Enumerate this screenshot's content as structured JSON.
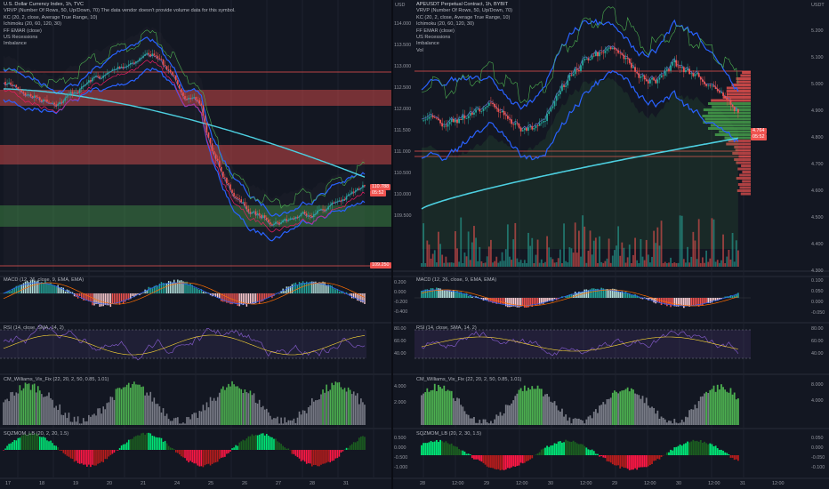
{
  "left": {
    "title": "U.S. Dollar Currency Index, 1h, TVC",
    "legend": [
      "VRVP (Number Of Rows, 50, Up/Down, 70)  The data vendor doesn't provide volume data for this symbol.",
      "KC (20, 2, close, Average True Range, 10)",
      "Ichimoku (20, 60, 120, 30)",
      "FF EMAR (close)",
      "US Recessions",
      "Imbalance"
    ],
    "indicators": {
      "macd": "MACD (12, 26, close, 9, EMA, EMA)",
      "rsi": "RSI (14, close, SMA, 14, 2)",
      "vix": "CM_Williams_Vix_Fix (22, 20, 2, 50, 0.85, 1.01)",
      "sqz": "SQZMOM_LB (20, 2, 20, 1.5)"
    },
    "price_tags": {
      "current": "110.788",
      "countdown": "05:52",
      "low": "109.250"
    },
    "time_labels": [
      "17",
      "18",
      "19",
      "20",
      "21",
      "24",
      "25",
      "26",
      "27",
      "28",
      "31"
    ]
  },
  "right": {
    "title": "APEUSDT Perpetual Contract, 1h, BYBIT",
    "legend": [
      "VRVP (Number Of Rows, 50, Up/Down, 70)",
      "KC (20, 2, close, Average True Range, 10)",
      "Ichimoku (20, 60, 120, 30)",
      "FF EMAR (close)",
      "US Recessions",
      "Imbalance",
      "Vol"
    ],
    "indicators": {
      "macd": "MACD (12, 26, close, 9, EMA, EMA)",
      "rsi": "RSI (14, close, SMA, 14, 2)",
      "vix": "CM_Williams_Vix_Fix (22, 20, 2, 50, 0.85, 1.01)",
      "sqz": "SQZMOM_LB (20, 2, 30, 1.5)"
    },
    "currency_left": "USD",
    "currency_right": "USDT",
    "left_axis": [
      "114.000",
      "113.500",
      "113.000",
      "112.500",
      "112.000",
      "111.500",
      "111.000",
      "110.500",
      "110.000",
      "109.500"
    ],
    "right_axis": [
      "5.100",
      "5.000",
      "4.900",
      "4.800",
      "4.700",
      "4.600",
      "4.500",
      "4.400",
      "4.300",
      "5.200",
      "5.300"
    ],
    "price_axis": [
      "5.200",
      "5.100",
      "5.000",
      "4.900",
      "4.800",
      "4.700",
      "4.600",
      "4.500",
      "4.400",
      "4.300"
    ],
    "price_tags": {
      "current": "4.764",
      "countdown": "05:52"
    },
    "macd_axis_left": [
      "0.200",
      "0.000",
      "-0.200",
      "-0.400"
    ],
    "macd_axis_right": [
      "0.100",
      "0.050",
      "0.000",
      "-0.050"
    ],
    "rsi_axis_left": [
      "80.00",
      "60.00",
      "40.00"
    ],
    "rsi_axis_right": [
      "80.00",
      "60.00",
      "40.00"
    ],
    "vix_axis_left": [
      "4.000",
      "2.000"
    ],
    "vix_axis_right": [
      "8.000",
      "4.000"
    ],
    "sqz_axis_left": [
      "0.500",
      "0.000",
      "-0.500",
      "-1.000"
    ],
    "sqz_axis_right": [
      "0.050",
      "0.000",
      "-0.050",
      "-0.100"
    ],
    "time_labels": [
      "28",
      "12:00",
      "29",
      "12:00",
      "30",
      "12:00",
      "29",
      "12:00",
      "30",
      "12:00",
      "31",
      "12:00"
    ]
  },
  "colors": {
    "up": "#26a69a",
    "down": "#ef5350",
    "bg": "#131722",
    "kc": "#2962ff",
    "ema": "#4dd0e1"
  }
}
